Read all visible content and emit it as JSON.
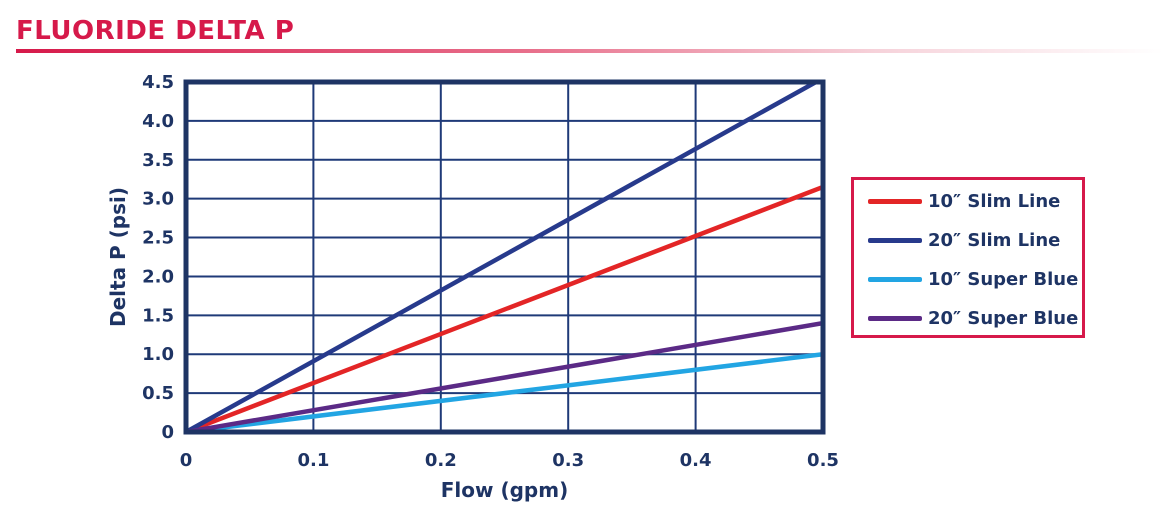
{
  "header": {
    "title": "FLUORIDE DELTA P"
  },
  "chart_data": {
    "type": "line",
    "title": "FLUORIDE DELTA P",
    "xlabel": "Flow (gpm)",
    "ylabel": "Delta P (psi)",
    "xlim": [
      0,
      0.5
    ],
    "ylim": [
      0,
      4.5
    ],
    "x_ticks": [
      "0",
      "0.1",
      "0.2",
      "0.3",
      "0.4",
      "0.5"
    ],
    "y_ticks": [
      "0",
      "0.5",
      "1.0",
      "1.5",
      "2.0",
      "2.5",
      "3.0",
      "3.5",
      "4.0",
      "4.5"
    ],
    "grid": true,
    "legend_position": "right",
    "series": [
      {
        "name": "10″ Slim Line",
        "color": "#e32526",
        "x": [
          0,
          0.5
        ],
        "y": [
          0,
          3.15
        ]
      },
      {
        "name": "20″ Slim Line",
        "color": "#273a8c",
        "x": [
          0,
          0.5
        ],
        "y": [
          0,
          4.55
        ]
      },
      {
        "name": "10″ Super Blue",
        "color": "#22a5e3",
        "x": [
          0,
          0.5
        ],
        "y": [
          0,
          1.0
        ]
      },
      {
        "name": "20″ Super Blue",
        "color": "#5b2a86",
        "x": [
          0,
          0.5
        ],
        "y": [
          0,
          1.4
        ]
      }
    ],
    "axis_color": "#1e3464",
    "grid_color": "#1f3a78"
  }
}
